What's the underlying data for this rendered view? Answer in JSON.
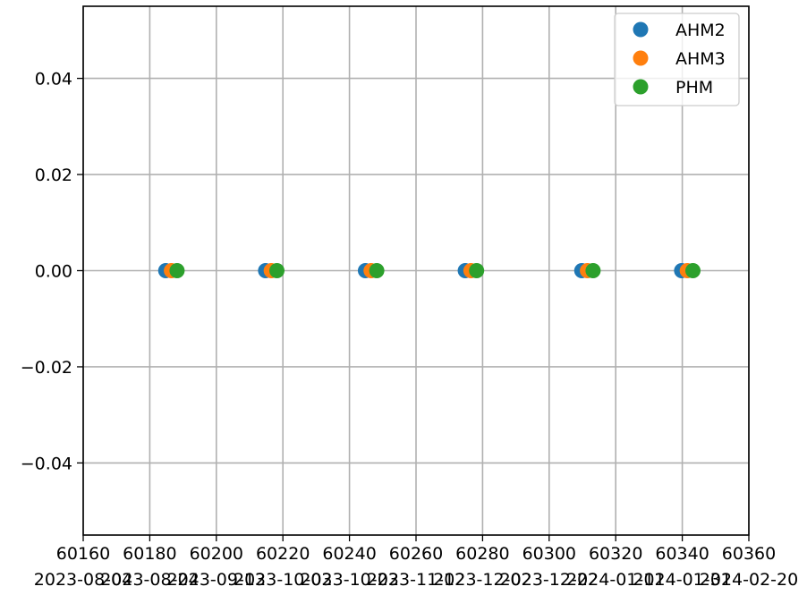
{
  "chart_data": {
    "type": "scatter",
    "title": "",
    "xlabel": "",
    "ylabel": "",
    "xlim": [
      60160,
      60360
    ],
    "ylim": [
      -0.055,
      0.055
    ],
    "grid": true,
    "legend_position": "top-right",
    "x_ticks": [
      60160,
      60180,
      60200,
      60220,
      60240,
      60260,
      60280,
      60300,
      60320,
      60340,
      60360
    ],
    "x_tick_labels": [
      "60160",
      "60180",
      "60200",
      "60220",
      "60240",
      "60260",
      "60280",
      "60300",
      "60320",
      "60340",
      "60360"
    ],
    "x_secondary_tick_labels": [
      "2023-08-04",
      "2023-08-24",
      "2023-09-13",
      "2023-10-03",
      "2023-10-23",
      "2023-11-12",
      "2023-12-02",
      "2023-12-22",
      "2024-01-11",
      "2024-01-31",
      "2024-02-20"
    ],
    "y_ticks": [
      -0.04,
      -0.02,
      0.0,
      0.02,
      0.04
    ],
    "y_tick_labels": [
      "−0.04",
      "−0.02",
      "0.00",
      "0.02",
      "0.04"
    ],
    "series": [
      {
        "name": "AHM2",
        "color": "#1f77b4",
        "x": [
          60184.8,
          60214.8,
          60244.8,
          60274.8,
          60309.8,
          60339.8
        ],
        "y": [
          0,
          0,
          0,
          0,
          0,
          0
        ]
      },
      {
        "name": "AHM3",
        "color": "#ff7f0e",
        "x": [
          60186.5,
          60216.5,
          60246.5,
          60276.5,
          60311.5,
          60341.5
        ],
        "y": [
          0,
          0,
          0,
          0,
          0,
          0
        ]
      },
      {
        "name": "PHM",
        "color": "#2ca02c",
        "x": [
          60188.2,
          60218.2,
          60248.2,
          60278.2,
          60313.2,
          60343.2
        ],
        "y": [
          0,
          0,
          0,
          0,
          0,
          0
        ]
      }
    ]
  }
}
